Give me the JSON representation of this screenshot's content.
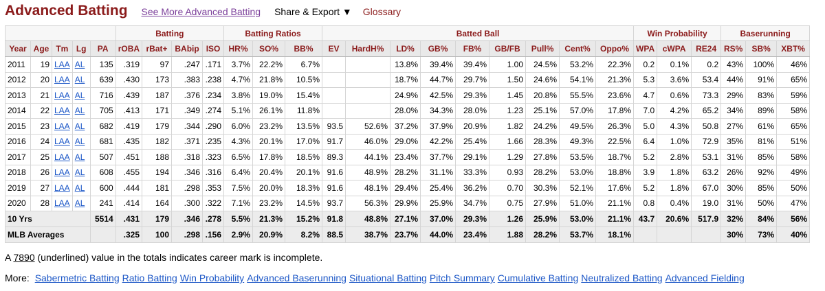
{
  "header": {
    "title": "Advanced Batting",
    "see_more": "See More Advanced Batting",
    "share": "Share & Export ▼",
    "glossary": "Glossary"
  },
  "groups": [
    "",
    "Batting",
    "Batting Ratios",
    "Batted Ball",
    "Win Probability",
    "Baserunning"
  ],
  "columns": [
    "Year",
    "Age",
    "Tm",
    "Lg",
    "PA",
    "rOBA",
    "rBat+",
    "BAbip",
    "ISO",
    "HR%",
    "SO%",
    "BB%",
    "EV",
    "HardH%",
    "LD%",
    "GB%",
    "FB%",
    "GB/FB",
    "Pull%",
    "Cent%",
    "Oppo%",
    "WPA",
    "cWPA",
    "RE24",
    "RS%",
    "SB%",
    "XBT%"
  ],
  "rows": [
    [
      "2011",
      "19",
      "LAA",
      "AL",
      "135",
      ".319",
      "97",
      ".247",
      ".171",
      "3.7%",
      "22.2%",
      "6.7%",
      "",
      "",
      "13.8%",
      "39.4%",
      "39.4%",
      "1.00",
      "24.5%",
      "53.2%",
      "22.3%",
      "0.2",
      "0.1%",
      "0.2",
      "43%",
      "100%",
      "46%"
    ],
    [
      "2012",
      "20",
      "LAA",
      "AL",
      "639",
      ".430",
      "173",
      ".383",
      ".238",
      "4.7%",
      "21.8%",
      "10.5%",
      "",
      "",
      "18.7%",
      "44.7%",
      "29.7%",
      "1.50",
      "24.6%",
      "54.1%",
      "21.3%",
      "5.3",
      "3.6%",
      "53.4",
      "44%",
      "91%",
      "65%"
    ],
    [
      "2013",
      "21",
      "LAA",
      "AL",
      "716",
      ".439",
      "187",
      ".376",
      ".234",
      "3.8%",
      "19.0%",
      "15.4%",
      "",
      "",
      "24.9%",
      "42.5%",
      "29.3%",
      "1.45",
      "20.8%",
      "55.5%",
      "23.6%",
      "4.7",
      "0.6%",
      "73.3",
      "29%",
      "83%",
      "59%"
    ],
    [
      "2014",
      "22",
      "LAA",
      "AL",
      "705",
      ".413",
      "171",
      ".349",
      ".274",
      "5.1%",
      "26.1%",
      "11.8%",
      "",
      "",
      "28.0%",
      "34.3%",
      "28.0%",
      "1.23",
      "25.1%",
      "57.0%",
      "17.8%",
      "7.0",
      "4.2%",
      "65.2",
      "34%",
      "89%",
      "58%"
    ],
    [
      "2015",
      "23",
      "LAA",
      "AL",
      "682",
      ".419",
      "179",
      ".344",
      ".290",
      "6.0%",
      "23.2%",
      "13.5%",
      "93.5",
      "52.6%",
      "37.2%",
      "37.9%",
      "20.9%",
      "1.82",
      "24.2%",
      "49.5%",
      "26.3%",
      "5.0",
      "4.3%",
      "50.8",
      "27%",
      "61%",
      "65%"
    ],
    [
      "2016",
      "24",
      "LAA",
      "AL",
      "681",
      ".435",
      "182",
      ".371",
      ".235",
      "4.3%",
      "20.1%",
      "17.0%",
      "91.7",
      "46.0%",
      "29.0%",
      "42.2%",
      "25.4%",
      "1.66",
      "28.3%",
      "49.3%",
      "22.5%",
      "6.4",
      "1.0%",
      "72.9",
      "35%",
      "81%",
      "51%"
    ],
    [
      "2017",
      "25",
      "LAA",
      "AL",
      "507",
      ".451",
      "188",
      ".318",
      ".323",
      "6.5%",
      "17.8%",
      "18.5%",
      "89.3",
      "44.1%",
      "23.4%",
      "37.7%",
      "29.1%",
      "1.29",
      "27.8%",
      "53.5%",
      "18.7%",
      "5.2",
      "2.8%",
      "53.1",
      "31%",
      "85%",
      "58%"
    ],
    [
      "2018",
      "26",
      "LAA",
      "AL",
      "608",
      ".455",
      "194",
      ".346",
      ".316",
      "6.4%",
      "20.4%",
      "20.1%",
      "91.6",
      "48.9%",
      "28.2%",
      "31.1%",
      "33.3%",
      "0.93",
      "28.2%",
      "53.0%",
      "18.8%",
      "3.9",
      "1.8%",
      "63.2",
      "26%",
      "92%",
      "49%"
    ],
    [
      "2019",
      "27",
      "LAA",
      "AL",
      "600",
      ".444",
      "181",
      ".298",
      ".353",
      "7.5%",
      "20.0%",
      "18.3%",
      "91.6",
      "48.1%",
      "29.4%",
      "25.4%",
      "36.2%",
      "0.70",
      "30.3%",
      "52.1%",
      "17.6%",
      "5.2",
      "1.8%",
      "67.0",
      "30%",
      "85%",
      "50%"
    ],
    [
      "2020",
      "28",
      "LAA",
      "AL",
      "241",
      ".414",
      "164",
      ".300",
      ".322",
      "7.1%",
      "23.2%",
      "14.5%",
      "93.7",
      "56.3%",
      "29.9%",
      "25.9%",
      "34.7%",
      "0.75",
      "27.9%",
      "51.0%",
      "21.1%",
      "0.8",
      "0.4%",
      "19.0",
      "31%",
      "50%",
      "47%"
    ]
  ],
  "totals": {
    "label": "10 Yrs",
    "values": [
      "5514",
      ".431",
      "179",
      ".346",
      ".278",
      "5.5%",
      "21.3%",
      "15.2%",
      "91.8",
      "48.8%",
      "27.1%",
      "37.0%",
      "29.3%",
      "1.26",
      "25.9%",
      "53.0%",
      "21.1%",
      "43.7",
      "20.6%",
      "517.9",
      "32%",
      "84%",
      "56%"
    ]
  },
  "averages": {
    "label": "MLB Averages",
    "values": [
      "",
      ".325",
      "100",
      ".298",
      ".156",
      "2.9%",
      "20.9%",
      "8.2%",
      "88.5",
      "38.7%",
      "23.7%",
      "44.0%",
      "23.4%",
      "1.88",
      "28.2%",
      "53.7%",
      "18.1%",
      "",
      "",
      "",
      "30%",
      "73%",
      "40%"
    ]
  },
  "note": {
    "prefix": "A ",
    "sample": "7890",
    "suffix": " (underlined) value in the totals indicates career mark is incomplete."
  },
  "more": {
    "label": "More:",
    "links": [
      "Sabermetric Batting",
      "Ratio Batting",
      "Win Probability",
      "Advanced Baserunning",
      "Situational Batting",
      "Pitch Summary",
      "Cumulative Batting",
      "Neutralized Batting",
      "Advanced Fielding"
    ]
  }
}
